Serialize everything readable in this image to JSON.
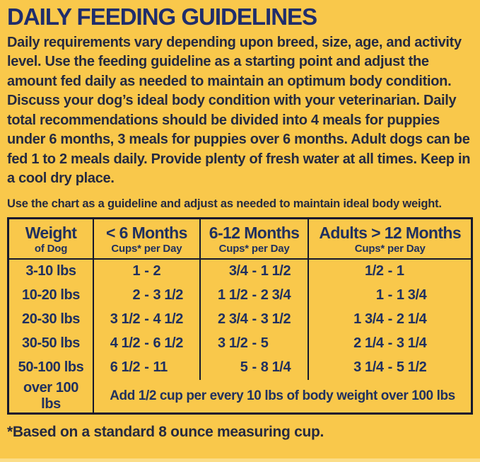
{
  "page": {
    "title": "DAILY FEEDING GUIDELINES",
    "intro": "Daily requirements vary depending upon breed, size, age, and activity level. Use the feeding guideline as a starting point and adjust the amount fed daily as needed to maintain an optimum body condition. Discuss your dog’s ideal body condition with your veterinarian. Daily total recommendations should be divided into 4 meals for puppies under 6 months, 3 meals for puppies over 6 months. Adult dogs can be fed 1 to 2 meals daily. Provide plenty of fresh water at all times. Keep in a cool dry place.",
    "chart_note": "Use the chart as a guideline and adjust as needed to maintain ideal body weight.",
    "footnote": "*Based on a standard 8 ounce measuring cup."
  },
  "colors": {
    "background": "#F9C84B",
    "title_navy": "#1F2D6C",
    "body_text": "#262A40",
    "table_text": "#20305F",
    "table_border": "#15182E"
  },
  "table": {
    "range_separator": "-",
    "headers": [
      {
        "title": "Weight",
        "subtitle": "of Dog"
      },
      {
        "title": "< 6 Months",
        "subtitle": "Cups* per Day"
      },
      {
        "title": "6-12 Months",
        "subtitle": "Cups* per Day"
      },
      {
        "title": "Adults > 12 Months",
        "subtitle": "Cups* per Day"
      }
    ],
    "rows": [
      {
        "weight": "3-10 lbs",
        "under6": {
          "low": "1",
          "high": "2"
        },
        "m6to12": {
          "low": "3/4",
          "high": "1 1/2"
        },
        "adults": {
          "low": "1/2",
          "high": "1"
        }
      },
      {
        "weight": "10-20 lbs",
        "under6": {
          "low": "2",
          "high": "3 1/2"
        },
        "m6to12": {
          "low": "1 1/2",
          "high": "2 3/4"
        },
        "adults": {
          "low": "1",
          "high": "1 3/4"
        }
      },
      {
        "weight": "20-30 lbs",
        "under6": {
          "low": "3 1/2",
          "high": "4 1/2"
        },
        "m6to12": {
          "low": "2 3/4",
          "high": "3 1/2"
        },
        "adults": {
          "low": "1 3/4",
          "high": "2 1/4"
        }
      },
      {
        "weight": "30-50 lbs",
        "under6": {
          "low": "4 1/2",
          "high": "6 1/2"
        },
        "m6to12": {
          "low": "3 1/2",
          "high": "5"
        },
        "adults": {
          "low": "2 1/4",
          "high": "3 1/4"
        }
      },
      {
        "weight": "50-100 lbs",
        "under6": {
          "low": "6 1/2",
          "high": "11"
        },
        "m6to12": {
          "low": "5",
          "high": "8 1/4"
        },
        "adults": {
          "low": "3 1/4",
          "high": "5 1/2"
        }
      }
    ],
    "overflow_row": {
      "weight": "over 100 lbs",
      "note": "Add 1/2 cup per every 10 lbs of body weight over 100 lbs"
    }
  }
}
